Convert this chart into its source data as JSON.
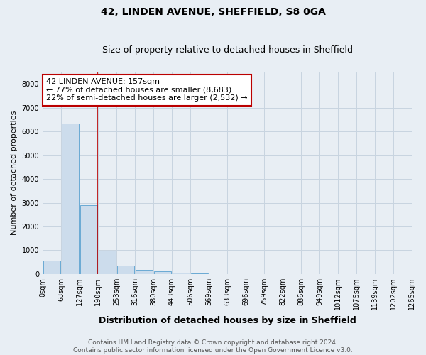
{
  "title": "42, LINDEN AVENUE, SHEFFIELD, S8 0GA",
  "subtitle": "Size of property relative to detached houses in Sheffield",
  "xlabel": "Distribution of detached houses by size in Sheffield",
  "ylabel": "Number of detached properties",
  "bin_edges": [
    0,
    63,
    127,
    190,
    253,
    316,
    380,
    443,
    506,
    569,
    633,
    696,
    759,
    822,
    886,
    949,
    1012,
    1075,
    1139,
    1202,
    1265
  ],
  "bar_heights": [
    560,
    6350,
    2900,
    970,
    360,
    160,
    110,
    55,
    20,
    5,
    3,
    2,
    1,
    1,
    0,
    0,
    0,
    0,
    0,
    0
  ],
  "bar_color": "#ccdcec",
  "bar_edgecolor": "#6aaad4",
  "grid_color": "#c8d4e0",
  "background_color": "#e8eef4",
  "plot_bg_color": "#dce8f0",
  "property_line_x": 157,
  "property_line_color": "#bb0000",
  "annotation_text": "42 LINDEN AVENUE: 157sqm\n← 77% of detached houses are smaller (8,683)\n22% of semi-detached houses are larger (2,532) →",
  "annotation_box_color": "#bb0000",
  "ylim": [
    0,
    8500
  ],
  "yticks": [
    0,
    1000,
    2000,
    3000,
    4000,
    5000,
    6000,
    7000,
    8000
  ],
  "xtick_labels": [
    "0sqm",
    "63sqm",
    "127sqm",
    "190sqm",
    "253sqm",
    "316sqm",
    "380sqm",
    "443sqm",
    "506sqm",
    "569sqm",
    "633sqm",
    "696sqm",
    "759sqm",
    "822sqm",
    "886sqm",
    "949sqm",
    "1012sqm",
    "1075sqm",
    "1139sqm",
    "1202sqm",
    "1265sqm"
  ],
  "footer_text": "Contains HM Land Registry data © Crown copyright and database right 2024.\nContains public sector information licensed under the Open Government Licence v3.0.",
  "title_fontsize": 10,
  "subtitle_fontsize": 9,
  "xlabel_fontsize": 9,
  "ylabel_fontsize": 8,
  "tick_fontsize": 7,
  "footer_fontsize": 6.5,
  "annotation_fontsize": 8
}
